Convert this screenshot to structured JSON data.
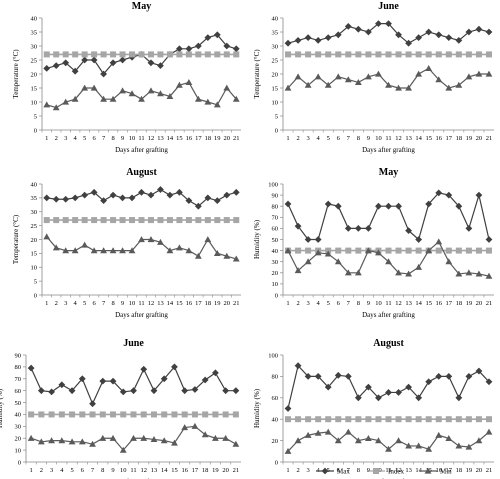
{
  "figure": {
    "legend": {
      "position": "bottom-right",
      "entries": [
        {
          "key": "max",
          "label": "Max",
          "marker": "diamond",
          "color": "#404040"
        },
        {
          "key": "index",
          "label": "Index",
          "marker": "square",
          "color": "#a6a6a6"
        },
        {
          "key": "min",
          "label": "Min",
          "marker": "triangle",
          "color": "#5a5a5a"
        }
      ]
    }
  },
  "chart_data": [
    {
      "type": "line",
      "title": "May",
      "xlabel": "Days after grafting",
      "ylabel": "Temperature (°C)",
      "ylim": [
        0,
        40
      ],
      "yticks": [
        0,
        5,
        10,
        15,
        20,
        25,
        30,
        35,
        40
      ],
      "x": [
        1,
        2,
        3,
        4,
        5,
        6,
        7,
        8,
        9,
        10,
        11,
        12,
        13,
        14,
        15,
        16,
        17,
        18,
        19,
        20,
        21
      ],
      "series": [
        {
          "name": "Max",
          "values": [
            22,
            23,
            24,
            21,
            25,
            25,
            20,
            24,
            25,
            26,
            27,
            24,
            23,
            27,
            29,
            29,
            30,
            33,
            34,
            30,
            29
          ]
        },
        {
          "name": "Index",
          "values": [
            27,
            27,
            27,
            27,
            27,
            27,
            27,
            27,
            27,
            27,
            27,
            27,
            27,
            27,
            27,
            27,
            27,
            27,
            27,
            27,
            27
          ]
        },
        {
          "name": "Min",
          "values": [
            9,
            8,
            10,
            11,
            15,
            15,
            11,
            11,
            14,
            13,
            11,
            14,
            13,
            12,
            16,
            17,
            11,
            10,
            9,
            15,
            11
          ]
        }
      ]
    },
    {
      "type": "line",
      "title": "June",
      "xlabel": "Days after grafting",
      "ylabel": "Temperature (°C)",
      "ylim": [
        0,
        40
      ],
      "yticks": [
        0,
        5,
        10,
        15,
        20,
        25,
        30,
        35,
        40
      ],
      "x": [
        1,
        2,
        3,
        4,
        5,
        6,
        7,
        8,
        9,
        10,
        11,
        12,
        13,
        14,
        15,
        16,
        17,
        18,
        19,
        20,
        21
      ],
      "series": [
        {
          "name": "Max",
          "values": [
            31,
            32,
            33,
            32,
            33,
            34,
            37,
            36,
            35,
            38,
            38,
            34,
            31,
            33,
            35,
            34,
            33,
            32,
            35,
            36,
            35
          ]
        },
        {
          "name": "Index",
          "values": [
            27,
            27,
            27,
            27,
            27,
            27,
            27,
            27,
            27,
            27,
            27,
            27,
            27,
            27,
            27,
            27,
            27,
            27,
            27,
            27,
            27
          ]
        },
        {
          "name": "Min",
          "values": [
            15,
            19,
            16,
            19,
            16,
            19,
            18,
            17,
            19,
            20,
            16,
            15,
            15,
            20,
            22,
            18,
            15,
            16,
            19,
            20,
            20
          ]
        }
      ]
    },
    {
      "type": "line",
      "title": "August",
      "xlabel": "Days after grafting",
      "ylabel": "Temperature (°C)",
      "ylim": [
        0,
        40
      ],
      "yticks": [
        0,
        5,
        10,
        15,
        20,
        25,
        30,
        35,
        40
      ],
      "x": [
        1,
        2,
        3,
        4,
        5,
        6,
        7,
        8,
        9,
        10,
        11,
        12,
        13,
        14,
        15,
        16,
        17,
        18,
        19,
        20,
        21
      ],
      "series": [
        {
          "name": "Max",
          "values": [
            35,
            34.5,
            34.5,
            35,
            36,
            37,
            34,
            36,
            35,
            35,
            37,
            36,
            38,
            36,
            37,
            34,
            32,
            35,
            34,
            36,
            37
          ]
        },
        {
          "name": "Index",
          "values": [
            27,
            27,
            27,
            27,
            27,
            27,
            27,
            27,
            27,
            27,
            27,
            27,
            27,
            27,
            27,
            27,
            27,
            27,
            27,
            27,
            27
          ]
        },
        {
          "name": "Min",
          "values": [
            21,
            17,
            16,
            16,
            18,
            16,
            16,
            16,
            16,
            16,
            20,
            20,
            19,
            16,
            17,
            16,
            14,
            20,
            15,
            14,
            13
          ]
        }
      ]
    },
    {
      "type": "line",
      "title": "May",
      "xlabel": "Days after grafting",
      "ylabel": "Humidity (%)",
      "ylim": [
        0,
        100
      ],
      "yticks": [
        0,
        10,
        20,
        30,
        40,
        50,
        60,
        70,
        80,
        90,
        100
      ],
      "x": [
        1,
        2,
        3,
        4,
        5,
        6,
        7,
        8,
        9,
        10,
        11,
        12,
        13,
        14,
        15,
        16,
        17,
        18,
        19,
        20,
        21
      ],
      "series": [
        {
          "name": "Max",
          "values": [
            82,
            62,
            50,
            50,
            82,
            80,
            60,
            60,
            60,
            80,
            80,
            80,
            58,
            50,
            82,
            92,
            90,
            80,
            60,
            90,
            50
          ]
        },
        {
          "name": "Index",
          "values": [
            40,
            40,
            40,
            40,
            40,
            40,
            40,
            40,
            40,
            40,
            40,
            40,
            40,
            40,
            40,
            40,
            40,
            40,
            40,
            40,
            40
          ]
        },
        {
          "name": "Min",
          "values": [
            40,
            22,
            30,
            38,
            37,
            30,
            20,
            20,
            40,
            38,
            30,
            20,
            19,
            25,
            40,
            48,
            30,
            19,
            20,
            19,
            17
          ]
        }
      ]
    },
    {
      "type": "line",
      "title": "June",
      "xlabel": "Days after grafting",
      "ylabel": "Humidity (%)",
      "ylim": [
        0,
        90
      ],
      "yticks": [
        0,
        10,
        20,
        30,
        40,
        50,
        60,
        70,
        80,
        90
      ],
      "x": [
        1,
        2,
        3,
        4,
        5,
        6,
        7,
        8,
        9,
        10,
        11,
        12,
        13,
        14,
        15,
        16,
        17,
        18,
        19,
        20,
        21
      ],
      "series": [
        {
          "name": "Max",
          "values": [
            79,
            60,
            59,
            65,
            60,
            70,
            49,
            68,
            68,
            59,
            60,
            78,
            60,
            70,
            80,
            60,
            61,
            69,
            75,
            60,
            60
          ]
        },
        {
          "name": "Index",
          "values": [
            40,
            40,
            40,
            40,
            40,
            40,
            40,
            40,
            40,
            40,
            40,
            40,
            40,
            40,
            40,
            40,
            40,
            40,
            40,
            40,
            40
          ]
        },
        {
          "name": "Min",
          "values": [
            20,
            17,
            18,
            18,
            17,
            17,
            15,
            20,
            20,
            10,
            20,
            20,
            19,
            18,
            16,
            29,
            30,
            23,
            20,
            20,
            15
          ]
        }
      ]
    },
    {
      "type": "line",
      "title": "August",
      "xlabel": "Days after grafting",
      "ylabel": "Humidity (%)",
      "ylim": [
        0,
        100
      ],
      "yticks": [
        0,
        20,
        40,
        60,
        80,
        100
      ],
      "x": [
        1,
        2,
        3,
        4,
        5,
        6,
        7,
        8,
        9,
        10,
        11,
        12,
        13,
        14,
        15,
        16,
        17,
        18,
        19,
        20,
        21
      ],
      "series": [
        {
          "name": "Max",
          "values": [
            50,
            90,
            80,
            80,
            70,
            81,
            80,
            60,
            70,
            60,
            65,
            65,
            70,
            60,
            75,
            80,
            80,
            60,
            80,
            85,
            75
          ]
        },
        {
          "name": "Index",
          "values": [
            40,
            40,
            40,
            40,
            40,
            40,
            40,
            40,
            40,
            40,
            40,
            40,
            40,
            40,
            40,
            40,
            40,
            40,
            40,
            40,
            40
          ]
        },
        {
          "name": "Min",
          "values": [
            10,
            20,
            25,
            27,
            28,
            20,
            28,
            20,
            22,
            20,
            12,
            20,
            15,
            15,
            12,
            25,
            22,
            15,
            14,
            20,
            28
          ]
        }
      ]
    }
  ]
}
